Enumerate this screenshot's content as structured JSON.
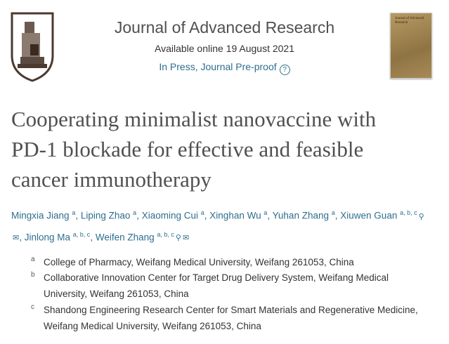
{
  "header": {
    "journal_title": "Journal of Advanced Research",
    "available": "Available online 19 August 2021",
    "status": "In Press, Journal Pre-proof",
    "help_icon": "question-circle-icon"
  },
  "cover": {
    "title": "Journal of Advanced Research"
  },
  "article": {
    "title_lines": [
      "Cooperating minimalist nanovaccine with",
      "PD-1 blockade for effective and feasible",
      "cancer immunotherapy"
    ]
  },
  "authors": [
    {
      "name": "Mingxia Jiang",
      "aff": "a"
    },
    {
      "name": "Liping Zhao",
      "aff": "a"
    },
    {
      "name": "Xiaoming Cui",
      "aff": "a"
    },
    {
      "name": "Xinghan Wu",
      "aff": "a"
    },
    {
      "name": "Yuhan Zhang",
      "aff": "a"
    },
    {
      "name": "Xiuwen Guan",
      "aff": "a, b, c"
    },
    {
      "name": "Jinlong Ma",
      "aff": "a, b, c"
    },
    {
      "name": "Weifen Zhang",
      "aff": "a, b, c"
    }
  ],
  "affiliations": [
    {
      "label": "a",
      "text": "College of Pharmacy, Weifang Medical University, Weifang 261053, China"
    },
    {
      "label": "b",
      "text": "Collaborative Innovation Center for Target Drug Delivery System, Weifang Medical University, Weifang 261053, China"
    },
    {
      "label": "c",
      "text": "Shandong Engineering Research Center for Smart Materials and Regenerative Medicine, Weifang Medical University, Weifang 261053, China"
    }
  ],
  "colors": {
    "link": "#2e6e8e",
    "title": "#505050"
  }
}
